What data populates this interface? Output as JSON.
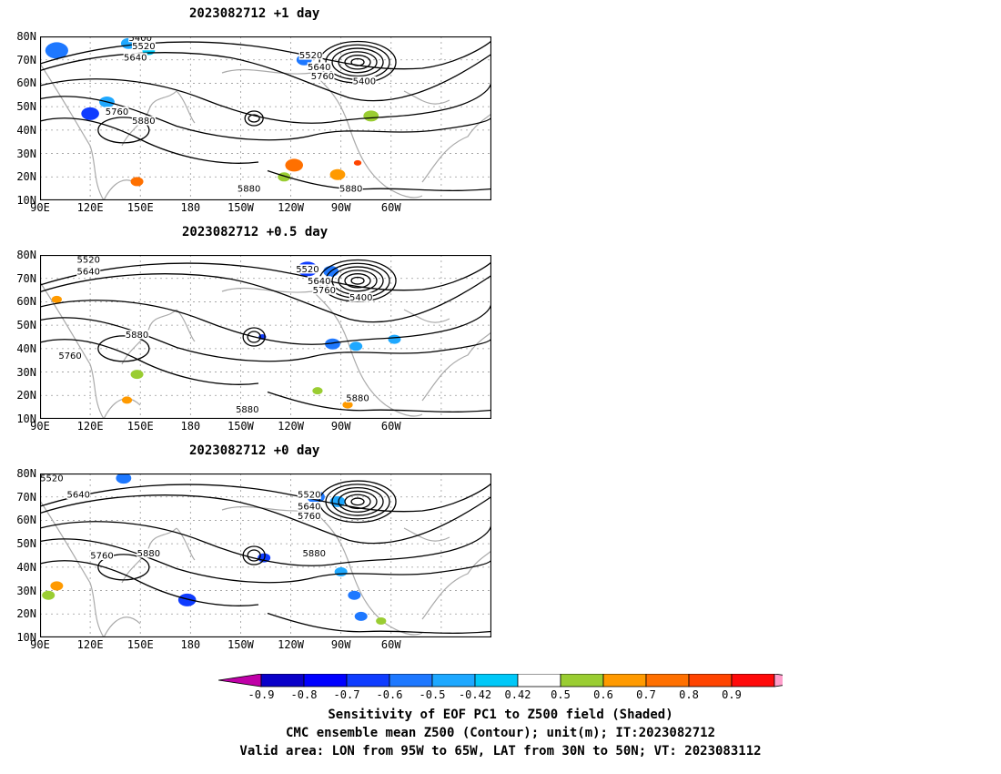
{
  "panels": [
    {
      "title": "2023082712  +1 day",
      "contour_labels": [
        {
          "text": "5400",
          "lon": 150,
          "lat": 79.5
        },
        {
          "text": "5520",
          "lon": 152,
          "lat": 76
        },
        {
          "text": "5640",
          "lon": 147,
          "lat": 71
        },
        {
          "text": "5520",
          "lon": -108,
          "lat": 72
        },
        {
          "text": "5640",
          "lon": -103,
          "lat": 67
        },
        {
          "text": "5760",
          "lon": -101,
          "lat": 63
        },
        {
          "text": "5400",
          "lon": -76,
          "lat": 61
        },
        {
          "text": "5760",
          "lon": 136,
          "lat": 48
        },
        {
          "text": "5880",
          "lon": 152,
          "lat": 44
        },
        {
          "text": "5880",
          "lon": -145,
          "lat": 15
        },
        {
          "text": "5880",
          "lon": -84,
          "lat": 15
        }
      ]
    },
    {
      "title": "2023082712  +0.5 day",
      "contour_labels": [
        {
          "text": "5520",
          "lon": 119,
          "lat": 78
        },
        {
          "text": "5640",
          "lon": 119,
          "lat": 73
        },
        {
          "text": "5520",
          "lon": -110,
          "lat": 74
        },
        {
          "text": "5640",
          "lon": -103,
          "lat": 69
        },
        {
          "text": "5760",
          "lon": -100,
          "lat": 65
        },
        {
          "text": "5400",
          "lon": -78,
          "lat": 62
        },
        {
          "text": "5880",
          "lon": 148,
          "lat": 46
        },
        {
          "text": "5760",
          "lon": 108,
          "lat": 37
        },
        {
          "text": "5880",
          "lon": -146,
          "lat": 14
        },
        {
          "text": "5880",
          "lon": -80,
          "lat": 19
        }
      ]
    },
    {
      "title": "2023082712  +0 day",
      "contour_labels": [
        {
          "text": "5520",
          "lon": 97,
          "lat": 78
        },
        {
          "text": "5640",
          "lon": 113,
          "lat": 71
        },
        {
          "text": "5520",
          "lon": -109,
          "lat": 71
        },
        {
          "text": "5640",
          "lon": -109,
          "lat": 66
        },
        {
          "text": "5760",
          "lon": -109,
          "lat": 62
        },
        {
          "text": "5760",
          "lon": 127,
          "lat": 45
        },
        {
          "text": "5880",
          "lon": 155,
          "lat": 46
        },
        {
          "text": "5880",
          "lon": -106,
          "lat": 46
        }
      ]
    }
  ],
  "lat_ticks": [
    "10N",
    "20N",
    "30N",
    "40N",
    "50N",
    "60N",
    "70N",
    "80N"
  ],
  "lon_ticks": [
    "90E",
    "120E",
    "150E",
    "180",
    "150W",
    "120W",
    "90W",
    "60W"
  ],
  "colorbar": {
    "labels": [
      "-0.9",
      "-0.8",
      "-0.7",
      "-0.6",
      "-0.5",
      "-0.42",
      "0.42",
      "0.5",
      "0.6",
      "0.7",
      "0.8",
      "0.9"
    ],
    "colors": [
      "#c000a8",
      "#0a00c8",
      "#0000ff",
      "#0f3cff",
      "#1e78ff",
      "#1ea8ff",
      "#00c8f8",
      "#ffffff",
      "#9acd32",
      "#ff9a00",
      "#ff7000",
      "#ff4400",
      "#ff0a0a",
      "#ff9ecb"
    ]
  },
  "captions": {
    "line1": "Sensitivity of EOF PC1 to Z500 field (Shaded)",
    "line2": "CMC ensemble mean Z500 (Contour); unit(m); IT:2023082712",
    "line3": "Valid area: LON from 95W to 65W, LAT from 30N to 50N; VT: 2023083112"
  }
}
